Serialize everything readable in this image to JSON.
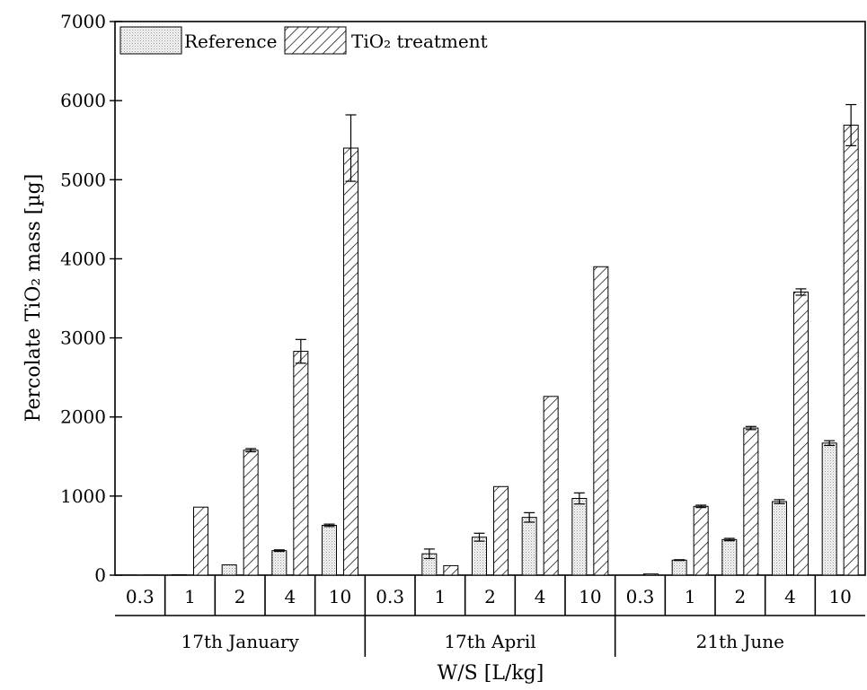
{
  "chart_data": {
    "type": "bar",
    "ylabel": "Percolate TiO₂ mass [µg]",
    "xlabel": "W/S [L/kg]",
    "ylim": [
      0,
      7000
    ],
    "yticks": [
      0,
      1000,
      2000,
      3000,
      4000,
      5000,
      6000,
      7000
    ],
    "legend_position": "top-left",
    "grid": false,
    "series": [
      {
        "name": "Reference",
        "pattern": "dots",
        "color": "#e8e8e8"
      },
      {
        "name": "TiO₂ treatment",
        "pattern": "hatch",
        "color": "#000000"
      }
    ],
    "groups": [
      {
        "label": "17th January",
        "categories": [
          "0.3",
          "1",
          "2",
          "4",
          "10"
        ],
        "reference": [
          2,
          5,
          130,
          310,
          630
        ],
        "reference_err": [
          0,
          0,
          0,
          10,
          15
        ],
        "treatment": [
          2,
          860,
          1580,
          2830,
          5400
        ],
        "treatment_err": [
          0,
          0,
          20,
          150,
          420
        ]
      },
      {
        "label": "17th April",
        "categories": [
          "0.3",
          "1",
          "2",
          "4",
          "10"
        ],
        "reference": [
          0,
          270,
          480,
          730,
          970
        ],
        "reference_err": [
          0,
          60,
          50,
          60,
          70
        ],
        "treatment": [
          0,
          120,
          1120,
          2260,
          3900
        ],
        "treatment_err": [
          0,
          0,
          0,
          0,
          0
        ]
      },
      {
        "label": "21th June",
        "categories": [
          "0.3",
          "1",
          "2",
          "4",
          "10"
        ],
        "reference": [
          0,
          190,
          450,
          930,
          1670
        ],
        "reference_err": [
          0,
          5,
          15,
          25,
          30
        ],
        "treatment": [
          15,
          870,
          1860,
          3580,
          5690
        ],
        "treatment_err": [
          0,
          15,
          20,
          40,
          260
        ]
      }
    ]
  }
}
